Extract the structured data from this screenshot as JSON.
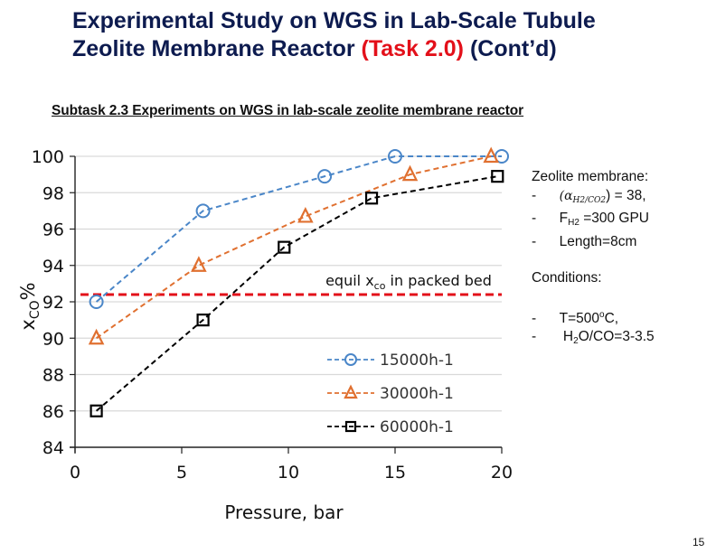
{
  "slide": {
    "title_line1": "Experimental Study on WGS in Lab-Scale Tubule",
    "title_line2_a": "Zeolite Membrane Reactor ",
    "title_line2_task": "(Task 2.0)",
    "title_line2_b": " (Cont’d)",
    "subtitle": "Subtask 2.3 Experiments on WGS in lab-scale zeolite membrane reactor",
    "page_number": "15",
    "colors": {
      "title": "#0d1b4f",
      "task_red": "#e3101a"
    }
  },
  "side_notes": {
    "membrane_heading": "Zeolite membrane:",
    "dash": "-",
    "alpha_prefix": "(α",
    "alpha_sub": "H2/CO2",
    "alpha_suffix": ") = 38,",
    "flux_prefix": "F",
    "flux_sub": "H2",
    "flux_suffix": " =300 GPU",
    "length": "Length=8cm",
    "conditions_heading": "Conditions:",
    "temperature_prefix": "T=500",
    "temperature_sup": "o",
    "temperature_suffix": "C,",
    "ratio_prefix": "H",
    "ratio_sub": "2",
    "ratio_suffix": "O/CO=3-3.5"
  },
  "chart_data": {
    "type": "line",
    "title": "",
    "xlabel": "Pressure, bar",
    "ylabel": "xCO%",
    "ylabel_main": "x",
    "ylabel_sub": "CO",
    "ylabel_suffix": "%",
    "xlim": [
      0,
      20
    ],
    "ylim": [
      84,
      100
    ],
    "xticks": [
      0,
      5,
      10,
      15,
      20
    ],
    "yticks": [
      84,
      86,
      88,
      90,
      92,
      94,
      96,
      98,
      100
    ],
    "grid": "horizontal",
    "legend_position": "bottom-right",
    "series": [
      {
        "name": "15000h-1",
        "marker": "circle",
        "color": "#4a86c8",
        "x": [
          1,
          6,
          11.7,
          15,
          20
        ],
        "y": [
          92,
          97,
          98.9,
          100,
          100
        ]
      },
      {
        "name": "30000h-1",
        "marker": "triangle",
        "color": "#e07030",
        "x": [
          1,
          5.8,
          10.8,
          15.7,
          19.5
        ],
        "y": [
          90,
          94,
          96.7,
          99,
          100
        ]
      },
      {
        "name": "60000h-1",
        "marker": "square",
        "color": "#000000",
        "x": [
          1,
          6,
          9.8,
          13.9,
          19.8
        ],
        "y": [
          86,
          91,
          95,
          97.7,
          98.9
        ]
      }
    ],
    "reference_line": {
      "label_prefix": "equil x",
      "label_sub": "co",
      "label_suffix": " in packed bed",
      "y": 92.4,
      "color": "#e3101a"
    }
  }
}
